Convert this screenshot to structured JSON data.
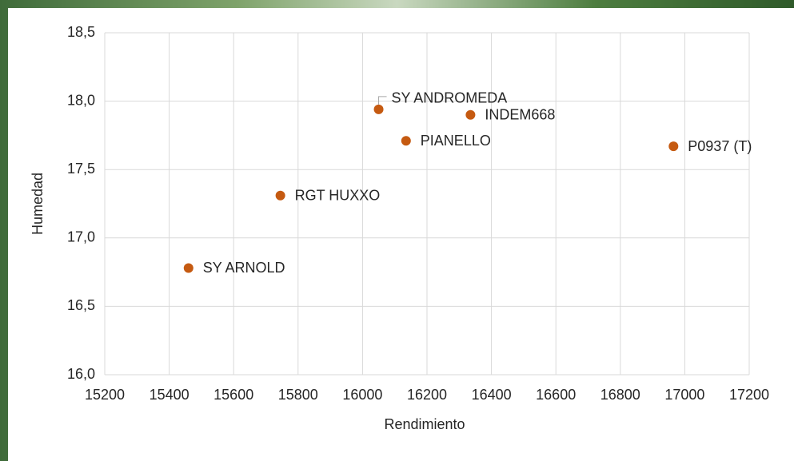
{
  "chart_data": {
    "type": "scatter",
    "x_label": "Rendimiento",
    "y_label": "Humedad",
    "labels": [
      "SY ARNOLD",
      "RGT HUXXO",
      "SY ANDROMEDA",
      "PIANELLO",
      "INDEM668",
      "P0937 (T)"
    ],
    "x": [
      15460,
      15745,
      16050,
      16135,
      16335,
      16965
    ],
    "values": [
      16.78,
      17.31,
      17.94,
      17.71,
      17.9,
      17.67
    ],
    "color": "#c55a11",
    "xlim": [
      15200,
      17200
    ],
    "xticks": [
      15200,
      15400,
      15600,
      15800,
      16000,
      16200,
      16400,
      16600,
      16800,
      17000,
      17200
    ],
    "ylim": [
      16.0,
      18.5
    ],
    "yticks": [
      {
        "value": 16.0,
        "label": "16,0"
      },
      {
        "value": 16.5,
        "label": "16,5"
      },
      {
        "value": 17.0,
        "label": "17,0"
      },
      {
        "value": 17.5,
        "label": "17,5"
      },
      {
        "value": 18.0,
        "label": "18,0"
      },
      {
        "value": 18.5,
        "label": "18,5"
      }
    ],
    "grid": true
  }
}
